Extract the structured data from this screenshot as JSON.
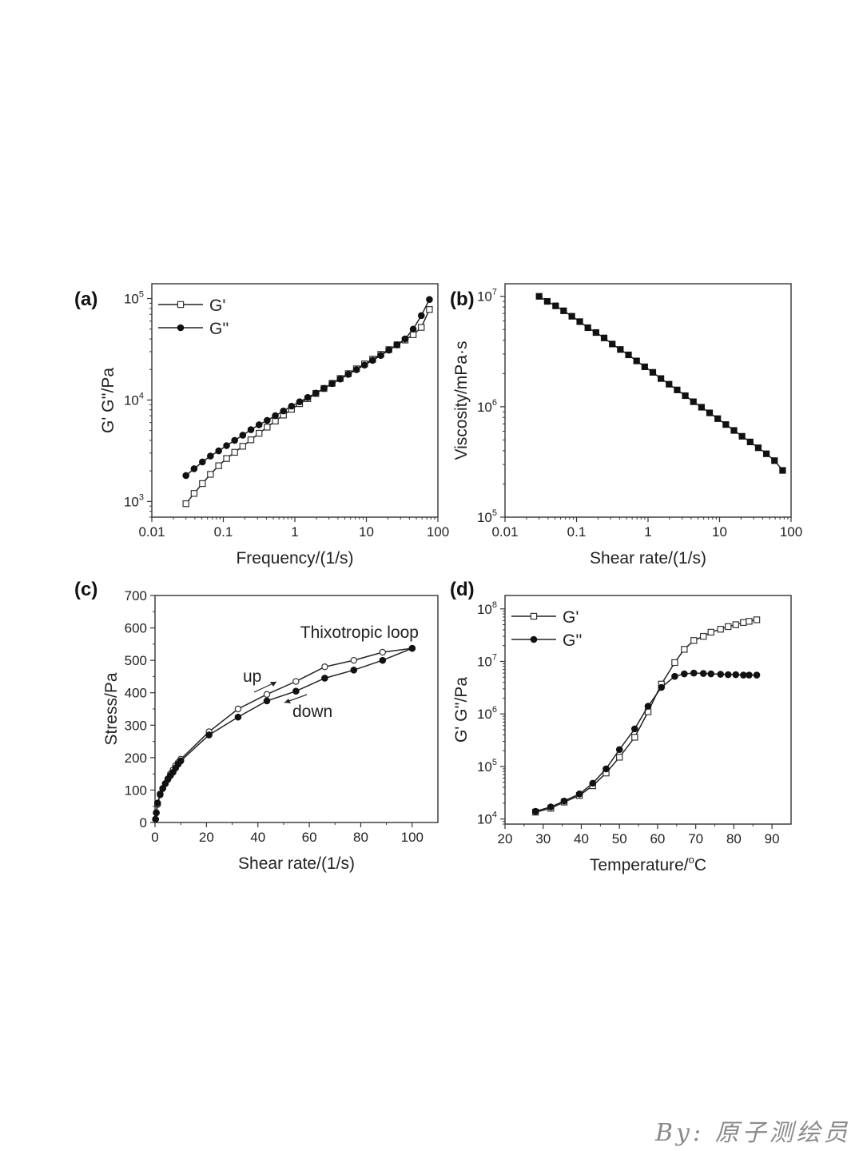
{
  "watermark": "By: 原子测绘员",
  "chart_data": [
    {
      "panel_label": "(a)",
      "type": "scatter",
      "xscale": "log",
      "yscale": "log",
      "xlim": [
        0.01,
        100
      ],
      "ylim": [
        700,
        140000
      ],
      "xticks": [
        0.01,
        0.1,
        1,
        10,
        100
      ],
      "xtick_labels": [
        "0.01",
        "0.1",
        "1",
        "10",
        "100"
      ],
      "yticks": [
        1000,
        10000,
        100000
      ],
      "ytick_labels": [
        [
          "10",
          "3"
        ],
        [
          "10",
          "4"
        ],
        [
          "10",
          "5"
        ]
      ],
      "xlabel": "Frequency/(1/s)",
      "ylabel": "G' G''/Pa",
      "legend": "top-left",
      "series": [
        {
          "name": "G'",
          "marker": "open-square",
          "x": [
            0.03,
            0.039,
            0.051,
            0.066,
            0.086,
            0.111,
            0.144,
            0.187,
            0.243,
            0.316,
            0.41,
            0.533,
            0.692,
            0.898,
            1.166,
            1.514,
            1.966,
            2.553,
            3.315,
            4.304,
            5.589,
            7.257,
            9.423,
            12.24,
            15.89,
            20.63,
            26.79,
            34.79,
            45.17,
            58.66,
            76.17
          ],
          "y": [
            950,
            1200,
            1500,
            1850,
            2250,
            2650,
            3050,
            3500,
            4050,
            4700,
            5400,
            6200,
            7100,
            8100,
            9200,
            10300,
            11600,
            13000,
            14600,
            16300,
            18200,
            20300,
            22700,
            25300,
            28200,
            31400,
            35000,
            39000,
            44000,
            52000,
            78000
          ]
        },
        {
          "name": "G''",
          "marker": "filled-circle",
          "x": [
            0.03,
            0.039,
            0.051,
            0.066,
            0.086,
            0.111,
            0.144,
            0.187,
            0.243,
            0.316,
            0.41,
            0.533,
            0.692,
            0.898,
            1.166,
            1.514,
            1.966,
            2.553,
            3.315,
            4.304,
            5.589,
            7.257,
            9.423,
            12.24,
            15.89,
            20.63,
            26.79,
            34.79,
            45.17,
            58.66,
            76.17
          ],
          "y": [
            1800,
            2100,
            2450,
            2800,
            3150,
            3550,
            4000,
            4500,
            5100,
            5700,
            6300,
            7000,
            7800,
            8700,
            9600,
            10600,
            11700,
            13000,
            14500,
            16100,
            17900,
            19900,
            22100,
            24600,
            27500,
            31000,
            35000,
            40000,
            50000,
            68000,
            98000
          ]
        }
      ]
    },
    {
      "panel_label": "(b)",
      "type": "scatter",
      "xscale": "log",
      "yscale": "log",
      "xlim": [
        0.01,
        100
      ],
      "ylim": [
        100000,
        13000000
      ],
      "xticks": [
        0.01,
        0.1,
        1,
        10,
        100
      ],
      "xtick_labels": [
        "0.01",
        "0.1",
        "1",
        "10",
        "100"
      ],
      "yticks": [
        100000,
        1000000,
        10000000
      ],
      "ytick_labels": [
        [
          "10",
          "5"
        ],
        [
          "10",
          "6"
        ],
        [
          "10",
          "7"
        ]
      ],
      "xlabel": "Shear rate/(1/s)",
      "ylabel": "Viscosity/mPa·s",
      "series": [
        {
          "name": "Viscosity",
          "marker": "filled-square",
          "x": [
            0.03,
            0.039,
            0.051,
            0.066,
            0.086,
            0.111,
            0.144,
            0.187,
            0.243,
            0.316,
            0.41,
            0.533,
            0.692,
            0.898,
            1.166,
            1.514,
            1.966,
            2.553,
            3.315,
            4.304,
            5.589,
            7.257,
            9.423,
            12.24,
            15.89,
            20.63,
            26.79,
            34.79,
            45.17,
            58.66,
            76.17
          ],
          "y": [
            10000000,
            9000000,
            8200000,
            7400000,
            6600000,
            5900000,
            5200000,
            4700000,
            4200000,
            3700000,
            3300000,
            2950000,
            2600000,
            2300000,
            2050000,
            1800000,
            1600000,
            1420000,
            1260000,
            1110000,
            990000,
            880000,
            780000,
            690000,
            610000,
            540000,
            480000,
            425000,
            375000,
            325000,
            265000
          ]
        }
      ]
    },
    {
      "panel_label": "(c)",
      "type": "line",
      "xscale": "linear",
      "yscale": "linear",
      "xlim": [
        0,
        110
      ],
      "ylim": [
        0,
        700
      ],
      "xticks": [
        0,
        20,
        40,
        60,
        80,
        100
      ],
      "yticks": [
        0,
        100,
        200,
        300,
        400,
        500,
        600,
        700
      ],
      "xlabel": "Shear rate/(1/s)",
      "ylabel": "Stress/Pa",
      "annotations": {
        "title": "Thixotropic loop",
        "up": "up",
        "down": "down"
      },
      "series": [
        {
          "name": "up",
          "marker": "open-circle",
          "x": [
            0.2,
            0.5,
            1,
            2,
            3,
            4,
            5,
            6,
            7,
            8,
            9,
            10,
            21,
            32.3,
            43.5,
            54.8,
            66,
            77.3,
            88.5,
            100
          ],
          "y": [
            10,
            30,
            55,
            85,
            105,
            120,
            135,
            150,
            162,
            175,
            185,
            195,
            280,
            350,
            395,
            435,
            480,
            500,
            525,
            537
          ]
        },
        {
          "name": "down",
          "marker": "filled-circle",
          "x": [
            100,
            88.5,
            77.3,
            66,
            54.8,
            43.5,
            32.3,
            21,
            10,
            9,
            8,
            7,
            6,
            5,
            4,
            3,
            2,
            1,
            0.5,
            0.2
          ],
          "y": [
            537,
            500,
            470,
            445,
            405,
            375,
            325,
            270,
            190,
            180,
            168,
            155,
            145,
            133,
            120,
            105,
            88,
            60,
            30,
            10
          ]
        }
      ]
    },
    {
      "panel_label": "(d)",
      "type": "scatter",
      "xscale": "linear",
      "yscale": "log",
      "xlim": [
        20,
        95
      ],
      "ylim": [
        8000,
        180000000
      ],
      "xticks": [
        20,
        30,
        40,
        50,
        60,
        70,
        80,
        90
      ],
      "yticks": [
        10000,
        100000,
        1000000,
        10000000,
        100000000
      ],
      "ytick_labels": [
        [
          "10",
          "4"
        ],
        [
          "10",
          "5"
        ],
        [
          "10",
          "6"
        ],
        [
          "10",
          "7"
        ],
        [
          "10",
          "8"
        ]
      ],
      "xlabel": "Temperature/",
      "xlabel_unit_sup": "o",
      "xlabel_unit": "C",
      "ylabel": "G' G''/Pa",
      "legend": "top-left",
      "series": [
        {
          "name": "G'",
          "marker": "open-square",
          "x": [
            28,
            32,
            35.5,
            39.5,
            43,
            46.5,
            50,
            54,
            57.5,
            61,
            64.5,
            67,
            69.5,
            72,
            74,
            76.5,
            78.5,
            80.5,
            82.5,
            84,
            86
          ],
          "y": [
            13500,
            16000,
            21000,
            28000,
            43000,
            75000,
            150000,
            360000,
            1100000,
            3700000,
            9500000,
            17000000,
            25000000,
            30000000,
            36000000,
            41000000,
            46000000,
            50000000,
            55000000,
            58000000,
            62000000
          ]
        },
        {
          "name": "G''",
          "marker": "filled-circle",
          "x": [
            28,
            32,
            35.5,
            39.5,
            43,
            46.5,
            50,
            54,
            57.5,
            61,
            64.5,
            67,
            69.5,
            72,
            74,
            76.5,
            78.5,
            80.5,
            82.5,
            84,
            86
          ],
          "y": [
            14000,
            17000,
            22000,
            30000,
            48000,
            90000,
            210000,
            520000,
            1400000,
            3200000,
            5200000,
            5800000,
            6000000,
            5900000,
            5800000,
            5700000,
            5600000,
            5600000,
            5500000,
            5500000,
            5500000
          ]
        }
      ]
    }
  ]
}
